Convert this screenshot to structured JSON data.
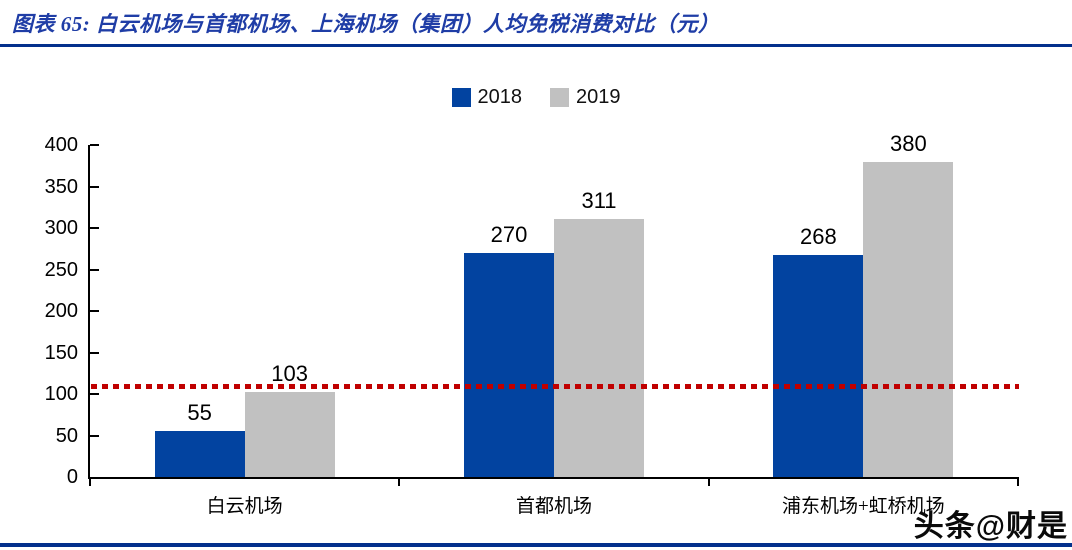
{
  "header": {
    "title": "图表 65:  白云机场与首都机场、上海机场（集团）人均免税消费对比（元）"
  },
  "chart_data": {
    "type": "bar",
    "title": "白云机场与首都机场、上海机场（集团）人均免税消费对比（元）",
    "categories": [
      "白云机场",
      "首都机场",
      "浦东机场+虹桥机场"
    ],
    "series": [
      {
        "name": "2018",
        "color": "#0243A0",
        "values": [
          55,
          270,
          268
        ]
      },
      {
        "name": "2019",
        "color": "#C1C1C1",
        "values": [
          103,
          311,
          380
        ]
      }
    ],
    "ylim": [
      0,
      400
    ],
    "yticks": [
      0,
      50,
      100,
      150,
      200,
      250,
      300,
      350,
      400
    ],
    "reference_line": {
      "value": 110,
      "color": "#C00000",
      "style": "dotted"
    },
    "legend_position": "top-center",
    "grid": false,
    "data_labels": true
  },
  "watermark": "头条@财是",
  "colors": {
    "accent_navy": "#03308C",
    "title_text": "#1F3DA6",
    "bar_2018": "#0243A0",
    "bar_2019": "#C1C1C1",
    "reference_red": "#C00000",
    "axis_black": "#000000"
  }
}
